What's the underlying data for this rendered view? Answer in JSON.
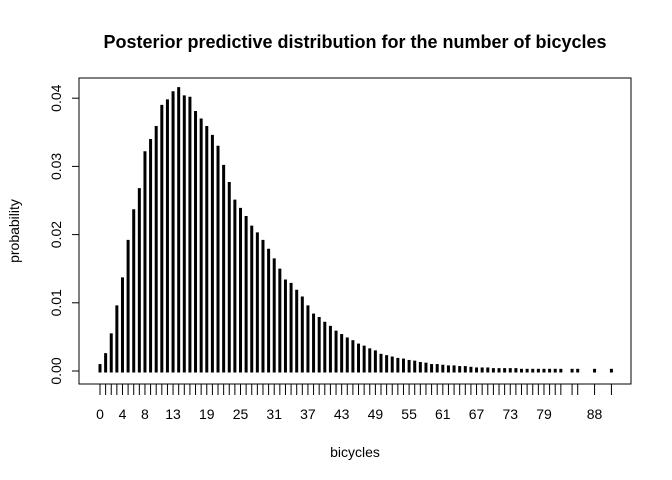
{
  "chart_data": {
    "type": "bar",
    "title": "Posterior predictive distribution for the number of bicycles",
    "xlabel": "bicycles",
    "ylabel": "probability",
    "ylim": [
      0,
      0.04
    ],
    "y_ticks": [
      "0.00",
      "0.01",
      "0.02",
      "0.03",
      "0.04"
    ],
    "x_tick_labels": [
      "0",
      "4",
      "8",
      "13",
      "19",
      "25",
      "31",
      "37",
      "43",
      "49",
      "55",
      "61",
      "67",
      "73",
      "79",
      "88"
    ],
    "grid": false,
    "x": [
      0,
      1,
      2,
      3,
      4,
      5,
      6,
      7,
      8,
      9,
      10,
      11,
      12,
      13,
      14,
      15,
      16,
      17,
      18,
      19,
      20,
      21,
      22,
      23,
      24,
      25,
      26,
      27,
      28,
      29,
      30,
      31,
      32,
      33,
      34,
      35,
      36,
      37,
      38,
      39,
      40,
      41,
      42,
      43,
      44,
      45,
      46,
      47,
      48,
      49,
      50,
      51,
      52,
      53,
      54,
      55,
      56,
      57,
      58,
      59,
      60,
      61,
      62,
      63,
      64,
      65,
      66,
      67,
      68,
      69,
      70,
      71,
      72,
      73,
      74,
      75,
      76,
      77,
      78,
      79,
      80,
      81,
      82,
      84,
      85,
      88,
      91
    ],
    "values": [
      0.0008,
      0.0024,
      0.0053,
      0.0094,
      0.0135,
      0.019,
      0.0235,
      0.0266,
      0.032,
      0.0338,
      0.0357,
      0.0388,
      0.0396,
      0.0408,
      0.0414,
      0.0402,
      0.04,
      0.0379,
      0.0368,
      0.0357,
      0.0344,
      0.0328,
      0.03,
      0.0275,
      0.0249,
      0.0237,
      0.0225,
      0.0211,
      0.0201,
      0.019,
      0.0177,
      0.0163,
      0.0148,
      0.0132,
      0.0127,
      0.0117,
      0.0107,
      0.0094,
      0.0082,
      0.0077,
      0.007,
      0.0064,
      0.0057,
      0.0052,
      0.0047,
      0.0043,
      0.0038,
      0.0035,
      0.0031,
      0.0028,
      0.0023,
      0.0021,
      0.0019,
      0.0017,
      0.0016,
      0.0014,
      0.0013,
      0.0011,
      0.001,
      0.0008,
      0.0008,
      0.0007,
      0.0006,
      0.0006,
      0.0005,
      0.0005,
      0.0004,
      0.0003,
      0.0003,
      0.0003,
      0.0002,
      0.0002,
      0.0002,
      0.0002,
      0.0002,
      0.0001,
      0.0001,
      0.0001,
      0.0001,
      0.0001,
      0.0001,
      0.0001,
      0.0001,
      0.0001,
      0.0001,
      0.0001,
      0.0001
    ]
  }
}
